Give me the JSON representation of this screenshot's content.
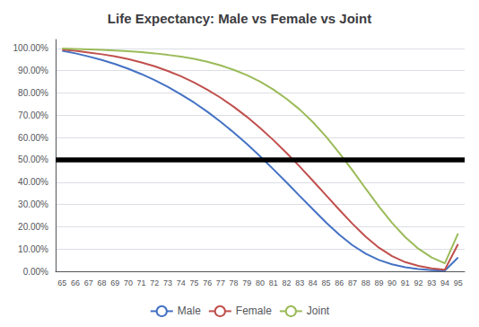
{
  "chart_data": {
    "type": "line",
    "title": "Life Expectancy: Male vs Female vs Joint",
    "categories": [
      "65",
      "66",
      "67",
      "68",
      "69",
      "70",
      "71",
      "72",
      "73",
      "74",
      "75",
      "76",
      "77",
      "78",
      "79",
      "80",
      "81",
      "82",
      "83",
      "84",
      "85",
      "86",
      "87",
      "88",
      "89",
      "90",
      "91",
      "92",
      "93",
      "94",
      "95"
    ],
    "series": [
      {
        "name": "Male",
        "color": "#4472C4",
        "values": [
          0.99,
          0.978,
          0.964,
          0.948,
          0.93,
          0.909,
          0.885,
          0.858,
          0.828,
          0.794,
          0.757,
          0.716,
          0.671,
          0.623,
          0.571,
          0.516,
          0.458,
          0.399,
          0.338,
          0.278,
          0.219,
          0.164,
          0.117,
          0.079,
          0.051,
          0.031,
          0.018,
          0.01,
          0.005,
          0.003,
          0.062
        ]
      },
      {
        "name": "Female",
        "color": "#C0504D",
        "values": [
          0.995,
          0.99,
          0.982,
          0.974,
          0.964,
          0.952,
          0.937,
          0.92,
          0.899,
          0.875,
          0.847,
          0.815,
          0.779,
          0.738,
          0.693,
          0.643,
          0.589,
          0.531,
          0.47,
          0.406,
          0.341,
          0.276,
          0.213,
          0.155,
          0.106,
          0.068,
          0.041,
          0.024,
          0.013,
          0.007,
          0.122
        ]
      },
      {
        "name": "Joint",
        "color": "#9BBB59",
        "values": [
          0.9995,
          0.9978,
          0.9961,
          0.994,
          0.991,
          0.988,
          0.984,
          0.978,
          0.971,
          0.963,
          0.953,
          0.94,
          0.924,
          0.904,
          0.88,
          0.851,
          0.816,
          0.774,
          0.726,
          0.669,
          0.604,
          0.531,
          0.453,
          0.371,
          0.291,
          0.217,
          0.153,
          0.101,
          0.062,
          0.036,
          0.17
        ]
      }
    ],
    "hlines": [
      {
        "y": 0.5,
        "color": "#000000"
      }
    ],
    "ylim": [
      0.0,
      1.04
    ],
    "yticks": [
      {
        "value": 0.0,
        "label": "0.00%"
      },
      {
        "value": 0.1,
        "label": "10.00%"
      },
      {
        "value": 0.2,
        "label": "20.00%"
      },
      {
        "value": 0.3,
        "label": "30.00%"
      },
      {
        "value": 0.4,
        "label": "40.00%"
      },
      {
        "value": 0.5,
        "label": "50.00%"
      },
      {
        "value": 0.6,
        "label": "60.00%"
      },
      {
        "value": 0.7,
        "label": "70.00%"
      },
      {
        "value": 0.8,
        "label": "80.00%"
      },
      {
        "value": 0.9,
        "label": "90.00%"
      },
      {
        "value": 1.0,
        "label": "100.00%"
      }
    ],
    "grid": true,
    "legend": "bottom"
  }
}
